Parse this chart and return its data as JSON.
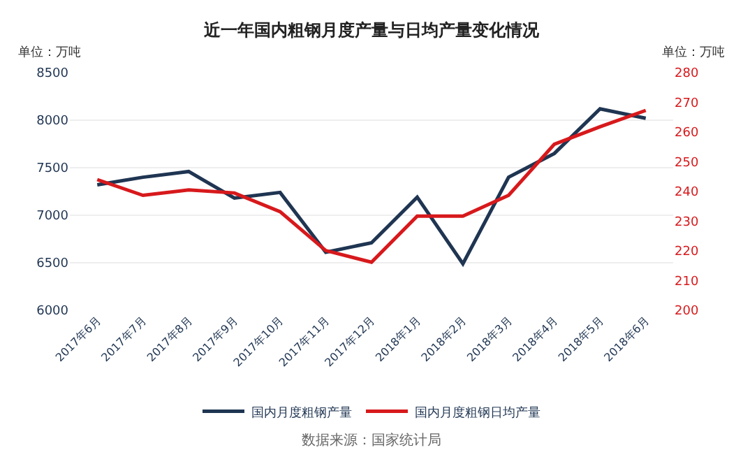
{
  "chart_data": {
    "type": "line",
    "title": "近一年国内粗钢月度产量与日均产量变化情况",
    "ylabel": "单位：万吨",
    "y2label": "单位：万吨",
    "categories": [
      "2017年6月",
      "2017年7月",
      "2017年8月",
      "2017年9月",
      "2017年10月",
      "2017年11月",
      "2017年12月",
      "2018年1月",
      "2018年2月",
      "2018年3月",
      "2018年4月",
      "2018年5月",
      "2018年6月"
    ],
    "series": [
      {
        "name": "国内月度粗钢产量",
        "color": "#1f3552",
        "values": [
          7320,
          7400,
          7460,
          7180,
          7240,
          6610,
          6710,
          7190,
          6490,
          7400,
          7650,
          8120,
          8020
        ]
      },
      {
        "name": "国内月度粗钢日均产量",
        "color": "#d7191c",
        "axis": "y2",
        "values": [
          244,
          238.7,
          240.5,
          239.5,
          233.2,
          220.1,
          216.2,
          231.7,
          231.7,
          238.7,
          255.9,
          261.8,
          267.3
        ]
      }
    ],
    "ylim": [
      6000,
      8500
    ],
    "yticks": [
      6000,
      6500,
      7000,
      7500,
      8000,
      8500
    ],
    "y2lim": [
      200,
      280
    ],
    "y2ticks": [
      200,
      210,
      220,
      230,
      240,
      250,
      260,
      270,
      280
    ],
    "grid": "y",
    "legend": "bottom",
    "marker": "none",
    "line_style": "solid",
    "annotations": [
      "数据来源：国家统计局"
    ]
  }
}
